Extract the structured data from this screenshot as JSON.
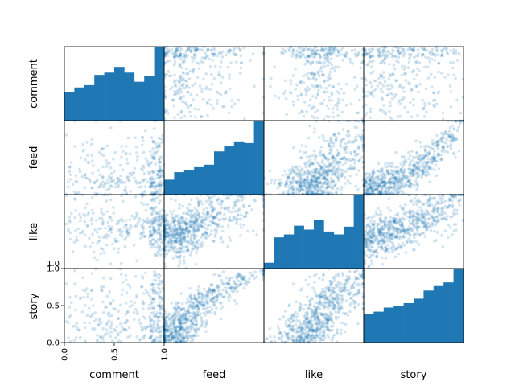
{
  "chart_data": {
    "type": "scatter",
    "title": "",
    "variables": [
      "comment",
      "feed",
      "like",
      "story"
    ],
    "range": [
      0,
      1
    ],
    "axis_ticks": {
      "story_y": [
        "0.0",
        "0.5",
        "1.0"
      ],
      "comment_x": [
        "0.0",
        "0.5",
        "1.0"
      ],
      "like_y_top": "1.0"
    },
    "histograms": {
      "bin_edges": [
        0,
        0.1,
        0.2,
        0.3,
        0.4,
        0.5,
        0.6,
        0.7,
        0.8,
        0.9,
        1.0
      ],
      "comment": [
        25,
        29,
        31,
        40,
        42,
        47,
        42,
        34,
        39,
        64
      ],
      "feed": [
        18,
        27,
        29,
        33,
        36,
        52,
        58,
        64,
        62,
        88
      ],
      "like": [
        6,
        32,
        35,
        44,
        40,
        50,
        38,
        35,
        43,
        75
      ],
      "story": [
        70,
        76,
        86,
        89,
        97,
        108,
        128,
        139,
        148,
        180
      ]
    },
    "histogram_scale": {
      "comment": 64,
      "feed": 88,
      "like": 75,
      "story": 180
    },
    "point_color": "#1f77b4",
    "bar_color": "#1f77b4",
    "point_alpha": 0.2,
    "grid": false
  }
}
